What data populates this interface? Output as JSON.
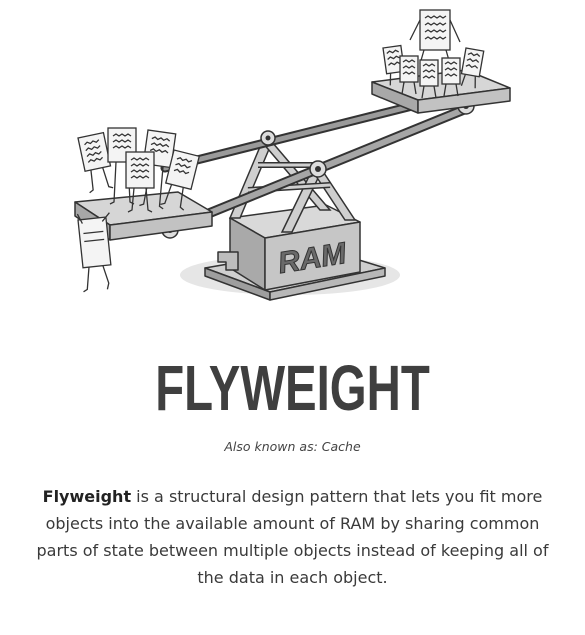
{
  "pattern": {
    "title": "FLYWEIGHT",
    "aka_label": "Also known as:",
    "aka_value": "Cache",
    "description_term": "Flyweight",
    "description_rest": " is a structural design pattern that lets you fit more objects into the available amount of RAM by sharing common parts of state between multiple objects instead of keeping all of the data in each object."
  },
  "illustration": {
    "box_label": "RAM"
  },
  "colors": {
    "title": "#3f3f3f",
    "text": "#3a3a3a",
    "ink": "#333333",
    "metal": "#d0d0d0",
    "metal_dark": "#8a8a8a"
  }
}
